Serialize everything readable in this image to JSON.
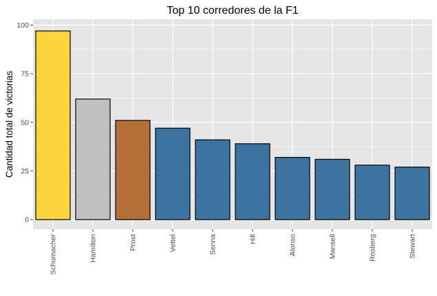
{
  "chart_data": {
    "type": "bar",
    "title": "Top 10 corredores de la F1",
    "xlabel": "",
    "ylabel": "Cantidad total de victorias",
    "categories": [
      "Schumacher",
      "Hamilton",
      "Prost",
      "Vettel",
      "Senna",
      "Hill",
      "Alonso",
      "Mansell",
      "Rosberg",
      "Stewart"
    ],
    "values": [
      97,
      62,
      51,
      47,
      41,
      39,
      32,
      31,
      28,
      27
    ],
    "bar_colors": [
      "#FAD53C",
      "#C0C0C0",
      "#B5703A",
      "#3D739F",
      "#3D739F",
      "#3D739F",
      "#3D739F",
      "#3D739F",
      "#3D739F",
      "#3D739F"
    ],
    "ylim": [
      0,
      100
    ],
    "yticks": [
      0,
      25,
      50,
      75,
      100
    ],
    "grid": true,
    "legend": "none",
    "panel_background": "#E5E5E5",
    "grid_color": "#FFFFFF",
    "bar_outline": "#000000"
  }
}
